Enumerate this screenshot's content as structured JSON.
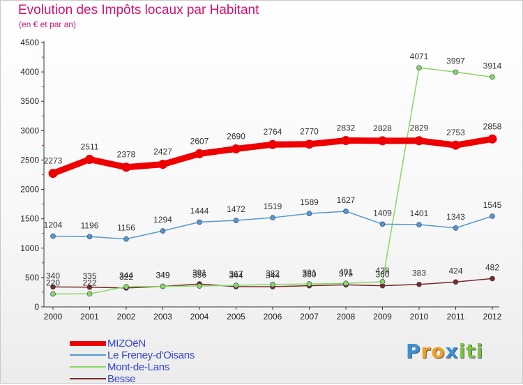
{
  "header": {
    "title": "Evolution des Impôts locaux par Habitant",
    "subtitle": "(en € et par an)"
  },
  "logo": {
    "letters": [
      {
        "ch": "P",
        "color": "#3a8fd6"
      },
      {
        "ch": "r",
        "color": "#f0a020"
      },
      {
        "ch": "o",
        "color": "#f0a020"
      },
      {
        "ch": "x",
        "color": "#3a8fd6"
      },
      {
        "ch": "i",
        "color": "#7cc242"
      },
      {
        "ch": "t",
        "color": "#7cc242"
      },
      {
        "ch": "i",
        "color": "#7cc242"
      }
    ]
  },
  "chart_data": {
    "type": "line",
    "title": "Evolution des Impôts locaux par Habitant",
    "subtitle": "(en € et par an)",
    "x": [
      "2000",
      "2001",
      "2002",
      "2003",
      "2004",
      "2005",
      "2006",
      "2007",
      "2008",
      "2009",
      "2010",
      "2011",
      "2012"
    ],
    "ylim": [
      0,
      4500
    ],
    "yticks": [
      0,
      500,
      1000,
      1500,
      2000,
      2500,
      3000,
      3500,
      4000,
      4500
    ],
    "grid": false,
    "legend_position": "bottom-left",
    "series": [
      {
        "name": "MIZOëN",
        "color": "#ee0000",
        "values": [
          2273,
          2511,
          2378,
          2427,
          2607,
          2690,
          2764,
          2770,
          2832,
          2828,
          2829,
          2753,
          2858
        ],
        "labels": [
          "2273",
          "2511",
          "2378",
          "2427",
          "2607",
          "2690",
          "2764",
          "2770",
          "2832",
          "2828",
          "2829",
          "2753",
          "2858"
        ]
      },
      {
        "name": "Le Freney-d'Oisans",
        "color": "#5599cc",
        "values": [
          1204,
          1196,
          1156,
          1294,
          1444,
          1472,
          1519,
          1589,
          1627,
          1409,
          1401,
          1343,
          1545
        ],
        "labels": [
          "1204",
          "1196",
          "1156",
          "1294",
          "1444",
          "1472",
          "1519",
          "1589",
          "1627",
          "1409",
          "1401",
          "1343",
          "1545"
        ]
      },
      {
        "name": "Mont-de-Lans",
        "color": "#88d860",
        "values": [
          220,
          222,
          344,
          349,
          356,
          367,
          382,
          391,
          401,
          428,
          4071,
          3997,
          3914
        ],
        "labels": [
          "220",
          "222",
          "344",
          "349",
          "356",
          "367",
          "382",
          "391",
          "401",
          "428",
          "4071",
          "3997",
          "3914"
        ]
      },
      {
        "name": "Besse",
        "color": "#7a2a2a",
        "values": [
          340,
          335,
          322,
          349,
          391,
          344,
          344,
          360,
          375,
          360,
          383,
          424,
          482
        ],
        "labels": [
          "340",
          "335",
          "322",
          "349",
          "391",
          "344",
          "344",
          "360",
          "375",
          "360",
          "383",
          "424",
          "482"
        ]
      }
    ]
  }
}
